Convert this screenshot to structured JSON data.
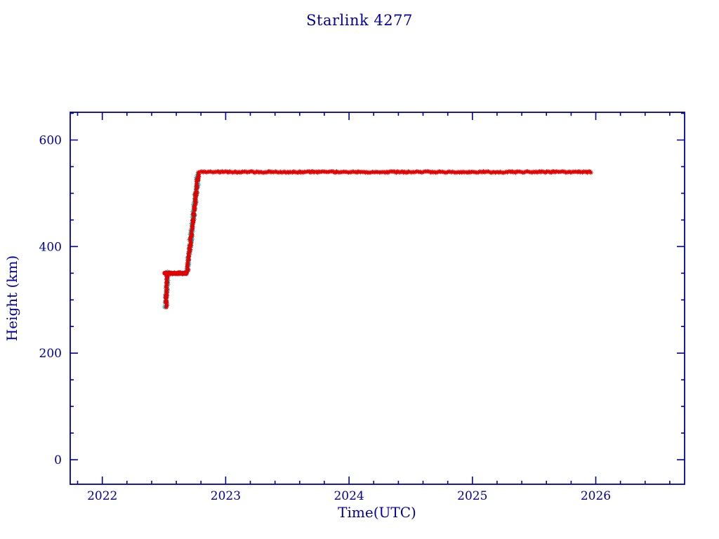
{
  "colors": {
    "background": "#ffffff",
    "axis": "#00009f",
    "text": "#00009f",
    "marker_primary": "#e00000",
    "marker_secondary": "#00b7b7"
  },
  "chart_data": {
    "type": "scatter",
    "title": "Starlink 4277",
    "xlabel": "Time(UTC)",
    "ylabel": "Height (km)",
    "xlim": [
      2021.74,
      2026.72
    ],
    "ylim": [
      -46,
      652
    ],
    "grid": false,
    "legend": null,
    "x_ticks": {
      "major": [
        2022,
        2023,
        2024,
        2025,
        2026
      ],
      "labels": [
        "2022",
        "2023",
        "2024",
        "2025",
        "2026"
      ],
      "minor_step": 0.2
    },
    "y_ticks": {
      "major": [
        0,
        200,
        400,
        600
      ],
      "labels": [
        "0",
        "200",
        "400",
        "600"
      ],
      "minor_step": 50
    },
    "series": [
      {
        "name": "height-track-secondary",
        "color": "#00b7b7",
        "marker": "asterisk",
        "marker_size": 3.2,
        "segments": [
          {
            "x0": 2022.516,
            "y0": 288,
            "x1": 2022.526,
            "y1": 350,
            "n": 22,
            "jx": 1.5,
            "jy": 2.0
          },
          {
            "x0": 2022.688,
            "y0": 354,
            "x1": 2022.776,
            "y1": 536,
            "n": 70,
            "jx": 1.6,
            "jy": 2.5
          }
        ]
      },
      {
        "name": "height-track-primary",
        "color": "#e00000",
        "marker": "asterisk",
        "marker_size": 2.7,
        "segments": [
          {
            "x0": 2022.515,
            "y0": 285,
            "x1": 2022.525,
            "y1": 350,
            "n": 30,
            "jx": 1.4,
            "jy": 2.0
          },
          {
            "x0": 2022.505,
            "y0": 350,
            "x1": 2022.688,
            "y1": 350,
            "n": 80,
            "jx": 0.8,
            "jy": 1.1
          },
          {
            "x0": 2022.688,
            "y0": 352,
            "x1": 2022.778,
            "y1": 537,
            "n": 95,
            "jx": 1.2,
            "jy": 2.0
          },
          {
            "x0": 2022.778,
            "y0": 540,
            "x1": 2025.96,
            "y1": 540,
            "n": 330,
            "jx": 0.0,
            "jy": 1.0
          }
        ]
      }
    ]
  }
}
